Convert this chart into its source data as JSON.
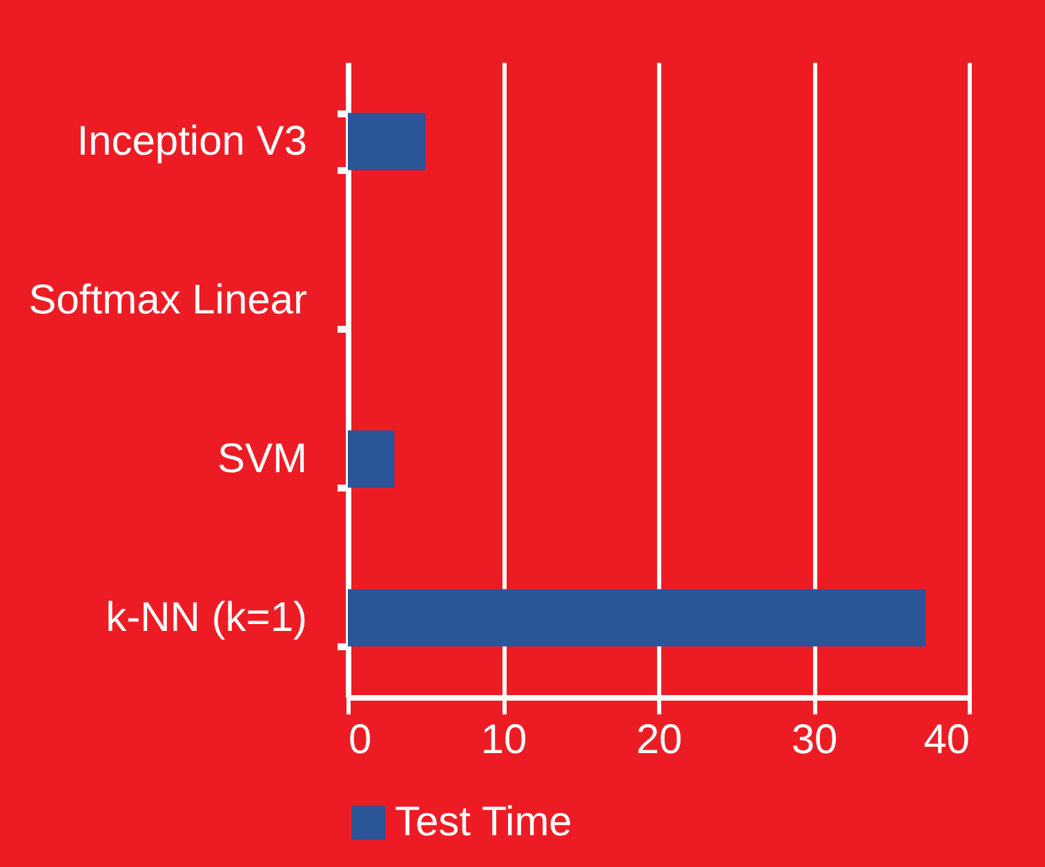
{
  "chart_data": {
    "type": "bar",
    "orientation": "horizontal",
    "categories": [
      "Inception V3",
      "Softmax Linear",
      "SVM",
      "k-NN (k=1)"
    ],
    "series": [
      {
        "name": "Test Time",
        "color": "#2a5597",
        "values": [
          5,
          0,
          3,
          37.2
        ]
      }
    ],
    "xlim": [
      0,
      40
    ],
    "xticks": [
      0,
      10,
      20,
      30,
      40
    ],
    "grid": "x",
    "legend": "bottom"
  }
}
